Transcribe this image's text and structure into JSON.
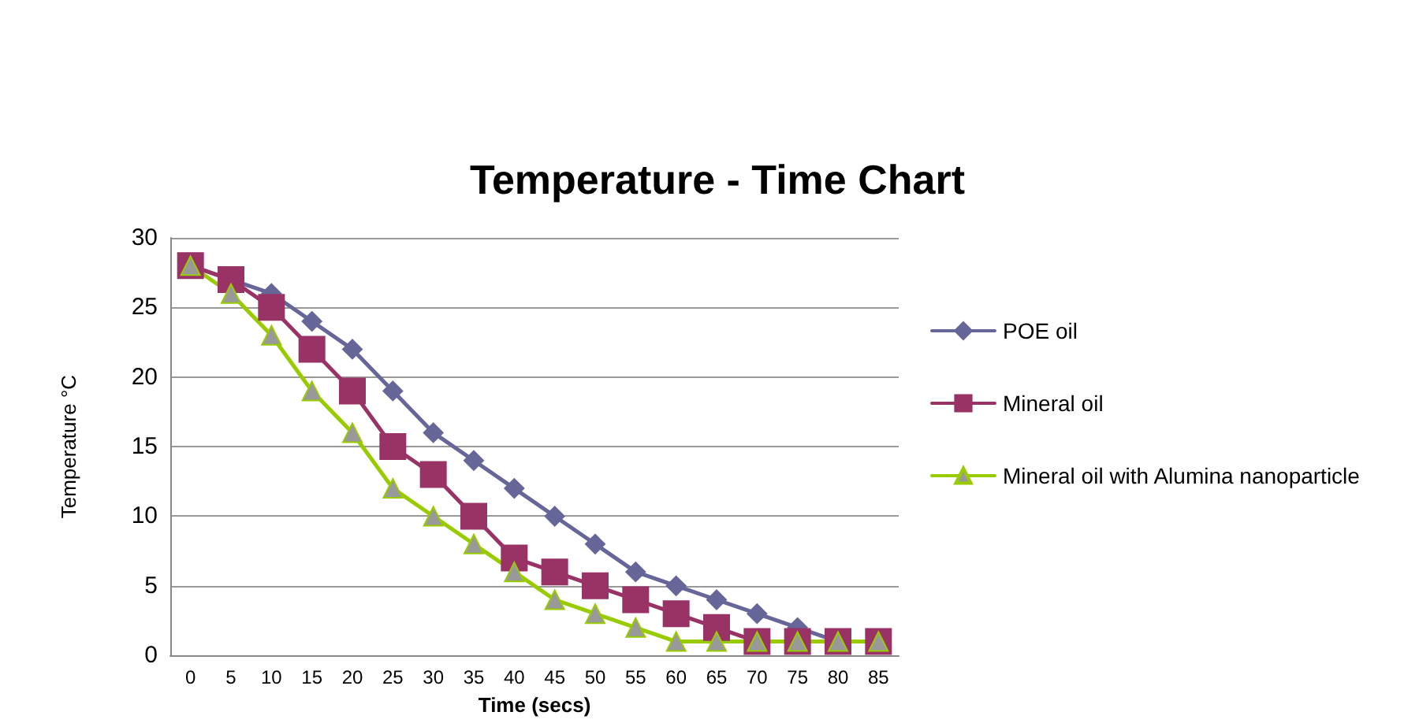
{
  "chart_data": {
    "type": "line",
    "title": "Temperature - Time Chart",
    "xlabel": "Time (secs)",
    "ylabel": "Temperature °C",
    "categories": [
      "0",
      "5",
      "10",
      "15",
      "20",
      "25",
      "30",
      "35",
      "40",
      "45",
      "50",
      "55",
      "60",
      "65",
      "70",
      "75",
      "80",
      "85"
    ],
    "series": [
      {
        "name": "POE oil",
        "color": "#666699",
        "marker": "diamond",
        "values": [
          28,
          27,
          26,
          24,
          22,
          19,
          16,
          14,
          12,
          10,
          8,
          6,
          5,
          4,
          3,
          2,
          1,
          1
        ]
      },
      {
        "name": "Mineral oil",
        "color": "#993366",
        "marker": "square",
        "values": [
          28,
          27,
          25,
          22,
          19,
          15,
          13,
          10,
          7,
          6,
          5,
          4,
          3,
          2,
          1,
          1,
          1,
          1
        ]
      },
      {
        "name": "Mineral oil with Alumina nanoparticle",
        "color": "#99cc00",
        "marker": "triangle",
        "values": [
          28,
          26,
          23,
          19,
          16,
          12,
          10,
          8,
          6,
          4,
          3,
          2,
          1,
          1,
          1,
          1,
          1,
          1
        ]
      }
    ],
    "ylim": [
      0,
      30
    ],
    "yticks": [
      0,
      5,
      10,
      15,
      20,
      25,
      30
    ],
    "grid": "y",
    "legend": "right"
  }
}
